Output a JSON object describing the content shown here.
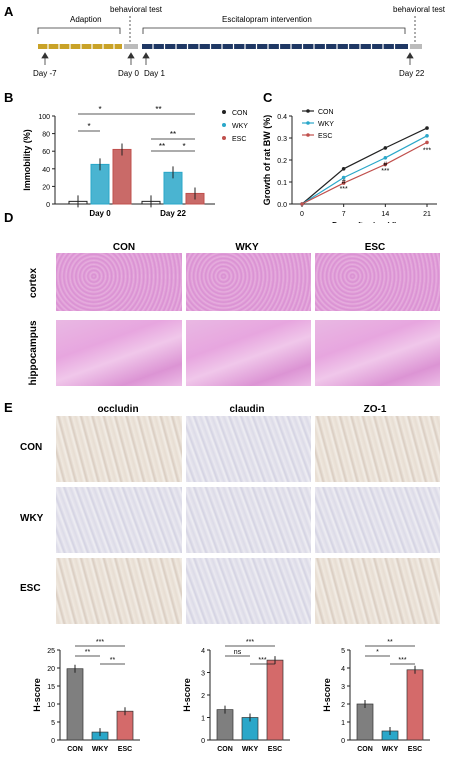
{
  "panel_labels": {
    "a": "A",
    "b": "B",
    "c": "C",
    "d": "D",
    "e": "E"
  },
  "timeline": {
    "adaption_label": "Adaption",
    "behavioral_test_1": "behavioral test",
    "intervention_label": "Escitalopram intervention",
    "behavioral_test_2": "behavioral test",
    "day_m7": "Day -7",
    "day_0": "Day 0",
    "day_1": "Day 1",
    "day_22": "Day 22",
    "colors": {
      "adaption": "#c9a227",
      "test": "#bbbbbb",
      "intervention": "#1f3864"
    }
  },
  "legend": {
    "con": "CON",
    "wky": "WKY",
    "esc": "ESC"
  },
  "colors": {
    "con": "#222222",
    "wky": "#2aa7c9",
    "esc": "#c0504d"
  },
  "chart_data": [
    {
      "type": "bar",
      "ylabel": "Immobility (%)",
      "categories": [
        "Day 0",
        "Day 22"
      ],
      "ylim": [
        0,
        100
      ],
      "yticks": [
        "0",
        "20",
        "40",
        "60",
        "80",
        "100"
      ],
      "series": [
        {
          "name": "CON",
          "values": [
            3,
            3
          ]
        },
        {
          "name": "WKY",
          "values": [
            45,
            36
          ]
        },
        {
          "name": "ESC",
          "values": [
            62,
            12
          ]
        }
      ],
      "significance": [
        "*",
        "*",
        "**",
        "**",
        "**",
        "*"
      ]
    },
    {
      "type": "line",
      "xlabel": "Days after i.g. (d)",
      "ylabel": "Growth of rat BW (%)",
      "x": [
        0,
        7,
        14,
        21
      ],
      "ylim": [
        0,
        0.4
      ],
      "yticks": [
        "0.0",
        "0.1",
        "0.2",
        "0.3",
        "0.4"
      ],
      "xticks": [
        "0",
        "7",
        "14",
        "21"
      ],
      "series": [
        {
          "name": "CON",
          "values": [
            0,
            0.16,
            0.255,
            0.345
          ]
        },
        {
          "name": "WKY",
          "values": [
            0,
            0.12,
            0.21,
            0.31
          ]
        },
        {
          "name": "ESC",
          "values": [
            0,
            0.095,
            0.18,
            0.28
          ]
        }
      ],
      "annotations": [
        "***",
        "#",
        "***",
        "#",
        "***"
      ]
    },
    {
      "type": "bar",
      "ylabel": "H-score",
      "title": "occludin",
      "categories": [
        "CON",
        "WKY",
        "ESC"
      ],
      "values": [
        19.8,
        2.2,
        8.0
      ],
      "ylim": [
        0,
        25
      ],
      "yticks": [
        "0",
        "5",
        "10",
        "15",
        "20",
        "25"
      ],
      "significance": [
        "***",
        "**",
        "**"
      ]
    },
    {
      "type": "bar",
      "ylabel": "H-score",
      "title": "claudin",
      "categories": [
        "CON",
        "WKY",
        "ESC"
      ],
      "values": [
        1.35,
        1.0,
        3.55
      ],
      "ylim": [
        0,
        4
      ],
      "yticks": [
        "0",
        "1",
        "2",
        "3",
        "4"
      ],
      "significance": [
        "***",
        "ns",
        "***"
      ]
    },
    {
      "type": "bar",
      "ylabel": "H-score",
      "title": "ZO-1",
      "categories": [
        "CON",
        "WKY",
        "ESC"
      ],
      "values": [
        2.0,
        0.5,
        3.9
      ],
      "ylim": [
        0,
        5
      ],
      "yticks": [
        "0",
        "1",
        "2",
        "3",
        "4",
        "5"
      ],
      "significance": [
        "**",
        "*",
        "***"
      ]
    }
  ],
  "he": {
    "cols": [
      "CON",
      "WKY",
      "ESC"
    ],
    "rows": [
      "cortex",
      "hippocampus"
    ]
  },
  "ihc": {
    "cols": [
      "occludin",
      "claudin",
      "ZO-1"
    ],
    "rows": [
      "CON",
      "WKY",
      "ESC"
    ]
  }
}
